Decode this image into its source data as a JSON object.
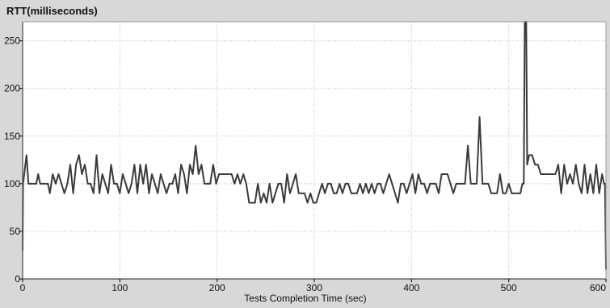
{
  "chart_data": {
    "type": "line",
    "title": "",
    "ylabel": "RTT(milliseconds)",
    "xlabel": "Tests Completion Time (sec)",
    "xlim": [
      0,
      600
    ],
    "ylim": [
      0,
      270
    ],
    "grid": true,
    "x_ticks": [
      0,
      100,
      200,
      300,
      400,
      500,
      600
    ],
    "y_ticks": [
      0,
      50,
      100,
      150,
      200,
      250
    ],
    "colors": {
      "background": "#d8d8d8",
      "plot_background": "#ffffff",
      "line": "#3a3a3a",
      "grid": "#b8b8b8",
      "axis": "#000000"
    },
    "series": [
      {
        "values": [
          [
            0,
            30
          ],
          [
            0.5,
            100
          ],
          [
            4,
            130
          ],
          [
            6,
            100
          ],
          [
            10,
            100
          ],
          [
            14,
            100
          ],
          [
            16,
            110
          ],
          [
            18,
            100
          ],
          [
            22,
            100
          ],
          [
            26,
            100
          ],
          [
            28,
            90
          ],
          [
            31,
            110
          ],
          [
            34,
            100
          ],
          [
            37,
            110
          ],
          [
            40,
            100
          ],
          [
            43,
            90
          ],
          [
            46,
            100
          ],
          [
            49,
            120
          ],
          [
            52,
            90
          ],
          [
            55,
            120
          ],
          [
            58,
            130
          ],
          [
            61,
            110
          ],
          [
            64,
            120
          ],
          [
            67,
            100
          ],
          [
            70,
            100
          ],
          [
            73,
            90
          ],
          [
            76,
            130
          ],
          [
            79,
            90
          ],
          [
            82,
            110
          ],
          [
            85,
            100
          ],
          [
            88,
            90
          ],
          [
            91,
            120
          ],
          [
            94,
            100
          ],
          [
            97,
            100
          ],
          [
            100,
            90
          ],
          [
            103,
            110
          ],
          [
            106,
            100
          ],
          [
            109,
            90
          ],
          [
            112,
            100
          ],
          [
            115,
            120
          ],
          [
            118,
            90
          ],
          [
            121,
            120
          ],
          [
            124,
            100
          ],
          [
            127,
            120
          ],
          [
            130,
            90
          ],
          [
            133,
            110
          ],
          [
            136,
            100
          ],
          [
            139,
            90
          ],
          [
            142,
            110
          ],
          [
            145,
            100
          ],
          [
            148,
            90
          ],
          [
            151,
            100
          ],
          [
            154,
            100
          ],
          [
            157,
            110
          ],
          [
            160,
            90
          ],
          [
            163,
            120
          ],
          [
            166,
            110
          ],
          [
            169,
            90
          ],
          [
            172,
            120
          ],
          [
            175,
            110
          ],
          [
            178,
            140
          ],
          [
            181,
            110
          ],
          [
            184,
            120
          ],
          [
            187,
            100
          ],
          [
            190,
            100
          ],
          [
            193,
            100
          ],
          [
            196,
            120
          ],
          [
            199,
            100
          ],
          [
            202,
            110
          ],
          [
            205,
            110
          ],
          [
            210,
            110
          ],
          [
            215,
            110
          ],
          [
            218,
            100
          ],
          [
            221,
            110
          ],
          [
            224,
            100
          ],
          [
            227,
            110
          ],
          [
            230,
            100
          ],
          [
            233,
            80
          ],
          [
            236,
            80
          ],
          [
            239,
            80
          ],
          [
            242,
            100
          ],
          [
            245,
            80
          ],
          [
            248,
            90
          ],
          [
            251,
            80
          ],
          [
            254,
            100
          ],
          [
            257,
            80
          ],
          [
            260,
            90
          ],
          [
            263,
            100
          ],
          [
            266,
            100
          ],
          [
            269,
            80
          ],
          [
            272,
            110
          ],
          [
            275,
            90
          ],
          [
            278,
            100
          ],
          [
            281,
            110
          ],
          [
            284,
            90
          ],
          [
            287,
            90
          ],
          [
            290,
            90
          ],
          [
            293,
            80
          ],
          [
            296,
            90
          ],
          [
            299,
            80
          ],
          [
            302,
            80
          ],
          [
            305,
            90
          ],
          [
            308,
            100
          ],
          [
            311,
            90
          ],
          [
            314,
            100
          ],
          [
            317,
            100
          ],
          [
            320,
            90
          ],
          [
            323,
            90
          ],
          [
            326,
            100
          ],
          [
            329,
            90
          ],
          [
            332,
            100
          ],
          [
            335,
            100
          ],
          [
            338,
            90
          ],
          [
            341,
            90
          ],
          [
            344,
            90
          ],
          [
            347,
            100
          ],
          [
            350,
            90
          ],
          [
            353,
            100
          ],
          [
            356,
            90
          ],
          [
            359,
            100
          ],
          [
            362,
            90
          ],
          [
            365,
            100
          ],
          [
            368,
            100
          ],
          [
            371,
            90
          ],
          [
            374,
            100
          ],
          [
            377,
            110
          ],
          [
            380,
            100
          ],
          [
            383,
            90
          ],
          [
            386,
            80
          ],
          [
            389,
            100
          ],
          [
            392,
            100
          ],
          [
            395,
            90
          ],
          [
            398,
            100
          ],
          [
            401,
            110
          ],
          [
            404,
            90
          ],
          [
            407,
            110
          ],
          [
            410,
            100
          ],
          [
            413,
            100
          ],
          [
            416,
            90
          ],
          [
            419,
            100
          ],
          [
            422,
            100
          ],
          [
            425,
            100
          ],
          [
            428,
            90
          ],
          [
            431,
            110
          ],
          [
            434,
            110
          ],
          [
            437,
            110
          ],
          [
            440,
            100
          ],
          [
            443,
            90
          ],
          [
            446,
            100
          ],
          [
            449,
            100
          ],
          [
            452,
            100
          ],
          [
            455,
            100
          ],
          [
            458,
            140
          ],
          [
            461,
            100
          ],
          [
            464,
            100
          ],
          [
            467,
            100
          ],
          [
            470,
            170
          ],
          [
            473,
            100
          ],
          [
            476,
            100
          ],
          [
            479,
            100
          ],
          [
            482,
            90
          ],
          [
            485,
            90
          ],
          [
            488,
            90
          ],
          [
            491,
            110
          ],
          [
            494,
            90
          ],
          [
            497,
            90
          ],
          [
            500,
            100
          ],
          [
            503,
            90
          ],
          [
            506,
            90
          ],
          [
            509,
            90
          ],
          [
            512,
            90
          ],
          [
            514,
            100
          ],
          [
            515.5,
            100
          ],
          [
            516.5,
            270
          ],
          [
            518,
            270
          ],
          [
            519,
            120
          ],
          [
            521,
            130
          ],
          [
            524,
            130
          ],
          [
            527,
            120
          ],
          [
            530,
            120
          ],
          [
            533,
            110
          ],
          [
            536,
            110
          ],
          [
            539,
            110
          ],
          [
            542,
            110
          ],
          [
            545,
            110
          ],
          [
            548,
            110
          ],
          [
            551,
            120
          ],
          [
            554,
            90
          ],
          [
            557,
            120
          ],
          [
            560,
            100
          ],
          [
            563,
            110
          ],
          [
            566,
            100
          ],
          [
            569,
            120
          ],
          [
            572,
            100
          ],
          [
            575,
            90
          ],
          [
            578,
            120
          ],
          [
            581,
            90
          ],
          [
            584,
            110
          ],
          [
            587,
            90
          ],
          [
            590,
            120
          ],
          [
            593,
            90
          ],
          [
            596,
            110
          ],
          [
            598,
            100
          ],
          [
            599,
            100
          ],
          [
            600,
            10
          ]
        ]
      }
    ]
  }
}
